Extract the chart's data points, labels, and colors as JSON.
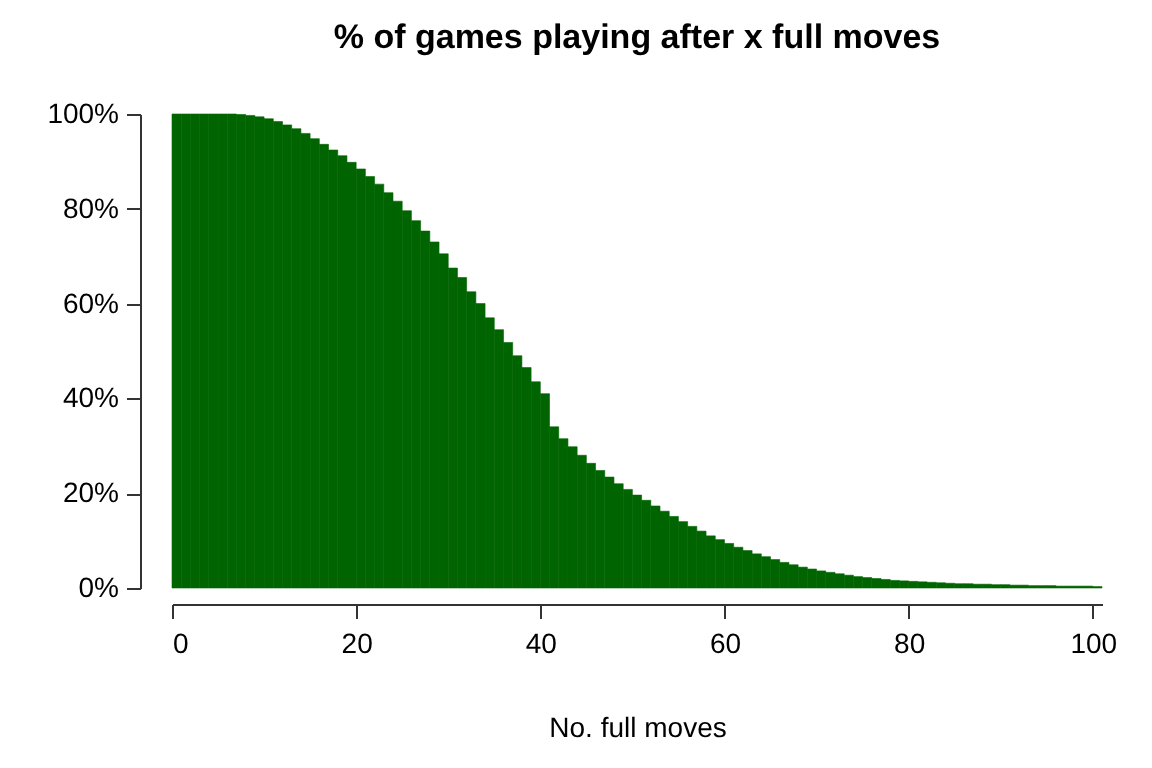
{
  "chart_data": {
    "type": "histogram",
    "title": "% of games playing after x full moves",
    "xlabel": "No. full moves",
    "color": "#006400",
    "bins": [
      0,
      1,
      2,
      3,
      4,
      5,
      6,
      7,
      8,
      9,
      10,
      11,
      12,
      13,
      14,
      15,
      16,
      17,
      18,
      19,
      20,
      21,
      22,
      23,
      24,
      25,
      26,
      27,
      28,
      29,
      30,
      31,
      32,
      33,
      34,
      35,
      36,
      37,
      38,
      39,
      40,
      41,
      42,
      43,
      44,
      45,
      46,
      47,
      48,
      49,
      50,
      51,
      52,
      53,
      54,
      55,
      56,
      57,
      58,
      59,
      60,
      61,
      62,
      63,
      64,
      65,
      66,
      67,
      68,
      69,
      70,
      71,
      72,
      73,
      74,
      75,
      76,
      77,
      78,
      79,
      80,
      81,
      82,
      83,
      84,
      85,
      86,
      87,
      88,
      89,
      90,
      91,
      92,
      93,
      94,
      95,
      96,
      97,
      98,
      99,
      100,
      101
    ],
    "values": [
      100,
      100,
      100,
      100,
      100,
      100,
      100,
      99.9,
      99.7,
      99.4,
      99,
      98.4,
      97.7,
      96.9,
      95.9,
      94.8,
      93.6,
      92.4,
      91.2,
      89.8,
      88.4,
      86.8,
      85.2,
      83.4,
      81.6,
      79.6,
      77.5,
      75.3,
      73,
      70.5,
      67.5,
      65.5,
      62.5,
      60,
      57,
      54.5,
      51.8,
      49,
      46.5,
      43.5,
      41,
      34,
      31.5,
      29.8,
      28,
      26.3,
      24.8,
      23.4,
      22,
      20.8,
      19.6,
      18.5,
      17.3,
      16.2,
      15.1,
      14,
      13,
      12,
      11,
      10.2,
      9.4,
      8.6,
      7.9,
      7.2,
      6.6,
      6,
      5.4,
      4.9,
      4.4,
      4,
      3.6,
      3.3,
      3,
      2.7,
      2.4,
      2.2,
      2,
      1.8,
      1.6,
      1.5,
      1.4,
      1.3,
      1.2,
      1.1,
      1,
      0.9,
      0.9,
      0.8,
      0.8,
      0.7,
      0.7,
      0.6,
      0.6,
      0.5,
      0.5,
      0.5,
      0.4,
      0.4,
      0.4,
      0.4,
      0.3
    ],
    "xlim": [
      0,
      101
    ],
    "xticks": [
      0,
      20,
      40,
      60,
      80,
      100
    ],
    "ylim": [
      0,
      100
    ],
    "yticks": [
      {
        "value": 0,
        "label": "0%"
      },
      {
        "value": 20,
        "label": "20%"
      },
      {
        "value": 40,
        "label": "40%"
      },
      {
        "value": 60,
        "label": "60%"
      },
      {
        "value": 80,
        "label": "80%"
      },
      {
        "value": 100,
        "label": "100%"
      }
    ]
  }
}
